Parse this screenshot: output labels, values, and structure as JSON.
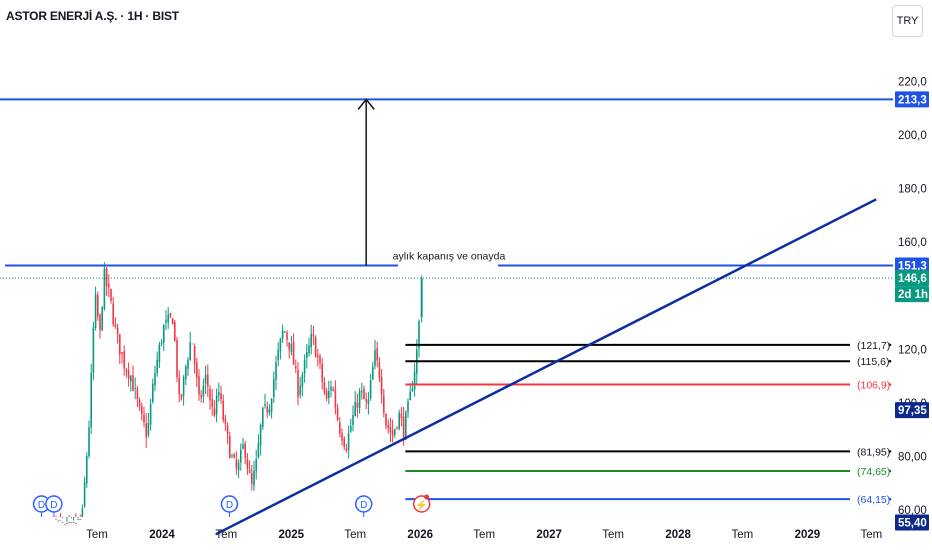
{
  "header": {
    "title": "ASTOR ENERJİ A.Ş. · 1H · BIST",
    "currency": "TRY"
  },
  "annotation_text": "aylık kapanış ve onayda",
  "colors": {
    "up": "#089981",
    "down": "#f23645",
    "blue_line": "#1e53e5",
    "trend_line": "#0d2e9e",
    "green_level": "#1b8a2b",
    "red_level": "#f23645",
    "dark_label": "#0b2a8c"
  },
  "chart_data": {
    "type": "candlestick",
    "y_axis": {
      "ticks": [
        "220,0",
        "200,0",
        "180,0",
        "160,0",
        "120,0",
        "100,0",
        "80,00",
        "60,00"
      ],
      "tick_values": [
        220,
        200,
        180,
        160,
        120,
        100,
        80,
        60
      ],
      "ylim": [
        50,
        233
      ]
    },
    "x_axis": {
      "tick_labels": [
        "Tem",
        "2024",
        "Tem",
        "2025",
        "Tem",
        "2026",
        "Tem",
        "2027",
        "Tem",
        "2028",
        "Tem",
        "2029",
        "Tem"
      ],
      "tick_dates": [
        "2023-07-01",
        "2024-01-01",
        "2024-07-01",
        "2025-01-01",
        "2025-07-01",
        "2026-01-01",
        "2026-07-01",
        "2027-01-01",
        "2027-07-01",
        "2028-01-01",
        "2028-07-01",
        "2029-01-01",
        "2029-07-01"
      ],
      "bold_labels": [
        "2024",
        "2025",
        "2026",
        "2027",
        "2028",
        "2029"
      ]
    },
    "price_path": [
      [
        "2023-01-20",
        55
      ],
      [
        "2023-02-10",
        64
      ],
      [
        "2023-03-10",
        55
      ],
      [
        "2023-04-15",
        52
      ],
      [
        "2023-05-20",
        57
      ],
      [
        "2023-06-10",
        95
      ],
      [
        "2023-06-25",
        140
      ],
      [
        "2023-07-10",
        125
      ],
      [
        "2023-07-20",
        148
      ],
      [
        "2023-08-05",
        140
      ],
      [
        "2023-08-25",
        125
      ],
      [
        "2023-09-15",
        115
      ],
      [
        "2023-10-05",
        110
      ],
      [
        "2023-11-01",
        95
      ],
      [
        "2023-11-20",
        88
      ],
      [
        "2023-12-10",
        110
      ],
      [
        "2024-01-05",
        128
      ],
      [
        "2024-02-01",
        132
      ],
      [
        "2024-02-20",
        98
      ],
      [
        "2024-03-10",
        115
      ],
      [
        "2024-03-25",
        125
      ],
      [
        "2024-04-15",
        100
      ],
      [
        "2024-05-05",
        110
      ],
      [
        "2024-05-25",
        95
      ],
      [
        "2024-06-10",
        104
      ],
      [
        "2024-06-25",
        92
      ],
      [
        "2024-07-15",
        80
      ],
      [
        "2024-08-01",
        74
      ],
      [
        "2024-08-20",
        85
      ],
      [
        "2024-09-10",
        68
      ],
      [
        "2024-09-25",
        78
      ],
      [
        "2024-10-10",
        95
      ],
      [
        "2024-11-01",
        100
      ],
      [
        "2024-11-20",
        115
      ],
      [
        "2024-12-10",
        128
      ],
      [
        "2025-01-01",
        120
      ],
      [
        "2025-01-20",
        105
      ],
      [
        "2025-02-10",
        115
      ],
      [
        "2025-03-01",
        125
      ],
      [
        "2025-03-20",
        115
      ],
      [
        "2025-04-10",
        100
      ],
      [
        "2025-04-25",
        108
      ],
      [
        "2025-05-15",
        92
      ],
      [
        "2025-06-05",
        84
      ],
      [
        "2025-06-25",
        95
      ],
      [
        "2025-07-15",
        104
      ],
      [
        "2025-08-05",
        98
      ],
      [
        "2025-08-25",
        118
      ],
      [
        "2025-09-10",
        110
      ],
      [
        "2025-09-25",
        93
      ],
      [
        "2025-10-15",
        88
      ],
      [
        "2025-11-01",
        96
      ],
      [
        "2025-11-15",
        90
      ],
      [
        "2025-12-01",
        100
      ],
      [
        "2025-12-15",
        112
      ],
      [
        "2025-12-25",
        122
      ],
      [
        "2026-01-05",
        146.6
      ]
    ],
    "horizontal_lines": [
      {
        "value": 213.3,
        "label": "213,3",
        "style": "blue",
        "from": "chart-left"
      },
      {
        "value": 151.3,
        "label": "151,3",
        "style": "blue",
        "from": "chart-left"
      },
      {
        "value": 146.6,
        "label": "146,6",
        "style": "green-dotted",
        "from": "chart-left"
      },
      {
        "value": 121.7,
        "label": "(121,7)",
        "style": "black",
        "from": "2025-11-20"
      },
      {
        "value": 115.6,
        "label": "(115,6)",
        "style": "black",
        "from": "2025-11-20"
      },
      {
        "value": 106.9,
        "label": "(106,9)",
        "style": "red",
        "from": "2025-11-20"
      },
      {
        "value": 81.95,
        "label": "(81,95)",
        "style": "black",
        "from": "2025-11-20"
      },
      {
        "value": 74.65,
        "label": "(74,65)",
        "style": "green",
        "from": "2025-11-20"
      },
      {
        "value": 64.15,
        "label": "(64,15)",
        "style": "blue",
        "from": "2025-11-20"
      }
    ],
    "trendline": {
      "start": [
        "2024-06-01",
        51
      ],
      "end": [
        "2029-07-15",
        176
      ]
    },
    "arrow": {
      "date": "2025-08-01",
      "from": 151.3,
      "to": 213.3
    },
    "price_labels": [
      {
        "text": "213,3",
        "value": 213.3,
        "bg": "#1e53e5"
      },
      {
        "text": "151,3",
        "value": 151.3,
        "bg": "#1e53e5"
      },
      {
        "text": "146,6",
        "value": 146.6,
        "bg": "#089981"
      },
      {
        "text": "2d 1h",
        "value": 146.6,
        "bg": "#089981",
        "below": true
      },
      {
        "text": "97,35",
        "value": 97.35,
        "bg": "#0b2a8c"
      },
      {
        "text": "55,40",
        "value": 55.4,
        "bg": "#0b2a8c"
      }
    ],
    "events": [
      {
        "date": "2023-01-25",
        "label": "D",
        "kind": "dividend"
      },
      {
        "date": "2023-03-01",
        "label": "D",
        "kind": "dividend"
      },
      {
        "date": "2024-07-10",
        "label": "D",
        "kind": "dividend"
      },
      {
        "date": "2025-07-25",
        "label": "D",
        "kind": "dividend"
      },
      {
        "date": "2026-01-05",
        "label": "⚡",
        "kind": "earnings"
      }
    ]
  }
}
